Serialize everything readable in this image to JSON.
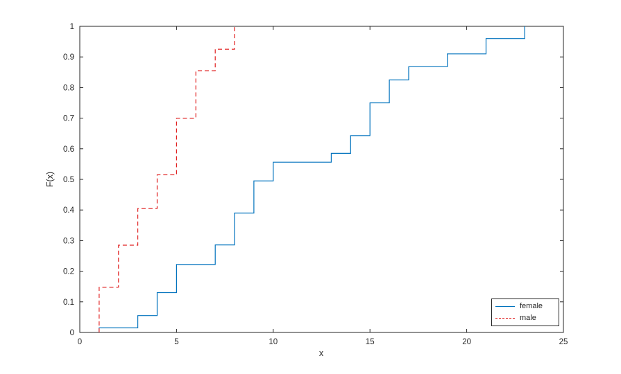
{
  "figure": {
    "background": "#ffffff",
    "axis_color": "#262626"
  },
  "chart_data": {
    "type": "line",
    "subtype": "step-ecdf",
    "title": "",
    "xlabel": "x",
    "ylabel": "F(x)",
    "xlim": [
      0,
      25
    ],
    "ylim": [
      0,
      1
    ],
    "grid": false,
    "box": true,
    "legend_position": "bottom-right",
    "x_ticks": [
      {
        "v": 0,
        "label": "0"
      },
      {
        "v": 5,
        "label": "5"
      },
      {
        "v": 10,
        "label": "10"
      },
      {
        "v": 15,
        "label": "15"
      },
      {
        "v": 20,
        "label": "20"
      },
      {
        "v": 25,
        "label": "25"
      }
    ],
    "y_ticks": [
      {
        "v": 0,
        "label": "0"
      },
      {
        "v": 0.1,
        "label": "0.1"
      },
      {
        "v": 0.2,
        "label": "0.2"
      },
      {
        "v": 0.3,
        "label": "0.3"
      },
      {
        "v": 0.4,
        "label": "0.4"
      },
      {
        "v": 0.5,
        "label": "0.5"
      },
      {
        "v": 0.6,
        "label": "0.6"
      },
      {
        "v": 0.7,
        "label": "0.7"
      },
      {
        "v": 0.8,
        "label": "0.8"
      },
      {
        "v": 0.9,
        "label": "0.9"
      },
      {
        "v": 1,
        "label": "1"
      }
    ],
    "series": [
      {
        "name": "female",
        "color": "#0072BD",
        "line_style": "solid",
        "x": [
          1,
          3,
          4,
          5,
          7,
          8,
          9,
          10,
          13,
          14,
          15,
          16,
          17,
          19,
          21,
          23
        ],
        "y": [
          0.015,
          0.055,
          0.13,
          0.222,
          0.286,
          0.39,
          0.495,
          0.556,
          0.585,
          0.643,
          0.75,
          0.825,
          0.868,
          0.91,
          0.96,
          1.0
        ]
      },
      {
        "name": "male",
        "color": "#E02020",
        "line_style": "dashed",
        "x": [
          1,
          2,
          3,
          4,
          5,
          6,
          7,
          8
        ],
        "y": [
          0.148,
          0.285,
          0.405,
          0.515,
          0.7,
          0.855,
          0.925,
          1.0
        ]
      }
    ]
  }
}
